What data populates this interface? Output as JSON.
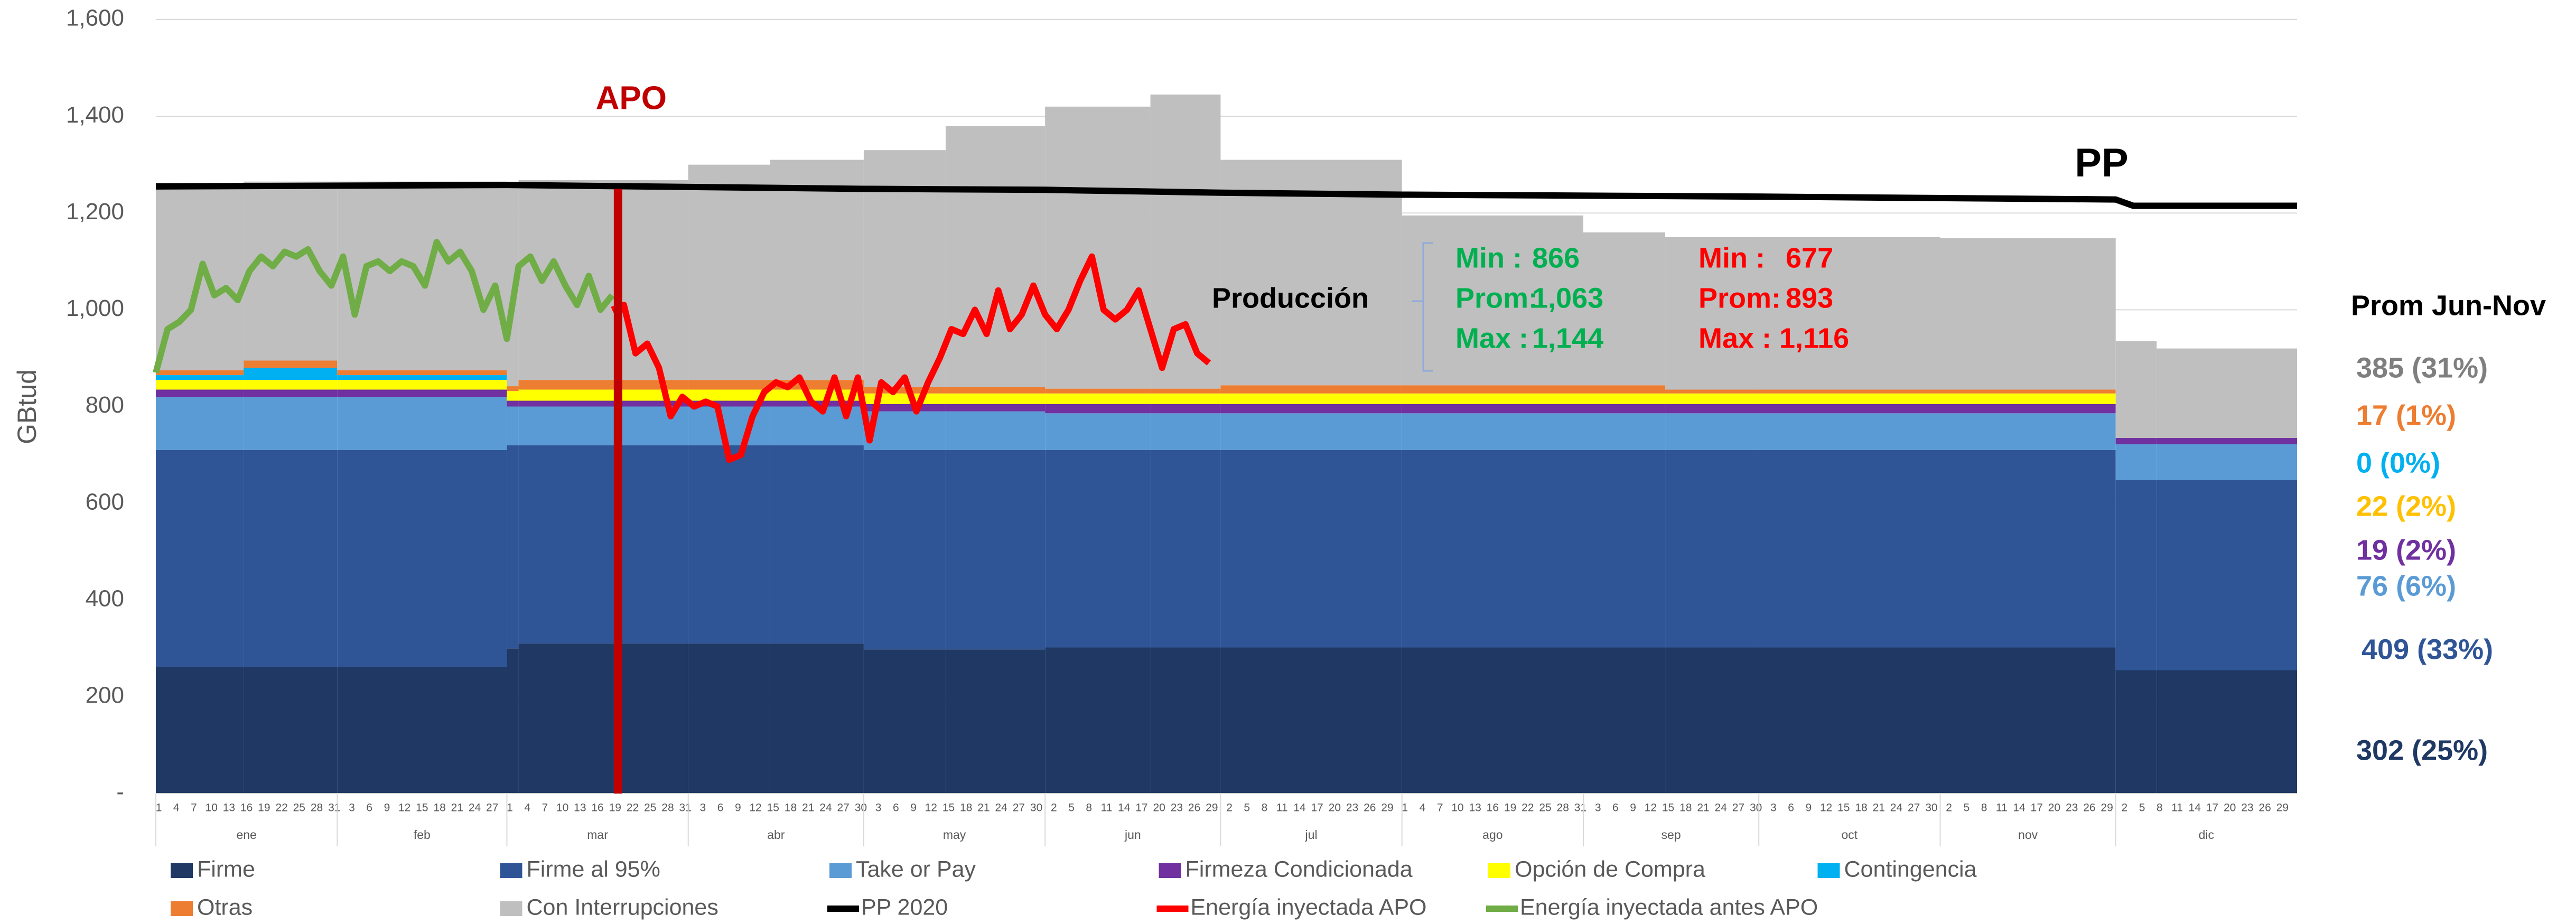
{
  "chart_data": {
    "type": "stacked-step-area",
    "y_label": "GBtud",
    "ylim": [
      0,
      1600
    ],
    "yticks": [
      {
        "value": 0,
        "label": "-"
      },
      200,
      400,
      600,
      800,
      {
        "value": 1000,
        "label": "1,000"
      },
      {
        "value": 1200,
        "label": "1,200"
      },
      {
        "value": 1400,
        "label": "1,400"
      },
      {
        "value": 1600,
        "label": "1,600"
      }
    ],
    "grid": true,
    "xlim": [
      0,
      366
    ],
    "months": [
      {
        "name": "ene",
        "start": 0,
        "days": 31,
        "ticks": [
          1,
          4,
          7,
          10,
          13,
          16,
          19,
          22,
          25,
          28,
          31
        ]
      },
      {
        "name": "feb",
        "start": 31,
        "days": 29,
        "ticks": [
          3,
          6,
          9,
          12,
          15,
          18,
          21,
          24,
          27
        ]
      },
      {
        "name": "mar",
        "start": 60,
        "days": 31,
        "ticks": [
          1,
          4,
          7,
          10,
          13,
          16,
          19,
          22,
          25,
          28,
          31
        ]
      },
      {
        "name": "abr",
        "start": 91,
        "days": 30,
        "ticks": [
          3,
          6,
          9,
          12,
          15,
          18,
          21,
          24,
          27,
          30
        ]
      },
      {
        "name": "may",
        "start": 121,
        "days": 31,
        "ticks": [
          3,
          6,
          9,
          12,
          15,
          18,
          21,
          24,
          27,
          30
        ]
      },
      {
        "name": "jun",
        "start": 152,
        "days": 30,
        "ticks": [
          2,
          5,
          8,
          11,
          14,
          17,
          20,
          23,
          26,
          29
        ]
      },
      {
        "name": "jul",
        "start": 182,
        "days": 31,
        "ticks": [
          2,
          5,
          8,
          11,
          14,
          17,
          20,
          23,
          26,
          29
        ]
      },
      {
        "name": "ago",
        "start": 213,
        "days": 31,
        "ticks": [
          1,
          4,
          7,
          10,
          13,
          16,
          19,
          22,
          25,
          28,
          31
        ]
      },
      {
        "name": "sep",
        "start": 244,
        "days": 30,
        "ticks": [
          3,
          6,
          9,
          12,
          15,
          18,
          21,
          24,
          27,
          30
        ]
      },
      {
        "name": "oct",
        "start": 274,
        "days": 31,
        "ticks": [
          3,
          6,
          9,
          12,
          15,
          18,
          21,
          24,
          27,
          30
        ]
      },
      {
        "name": "nov",
        "start": 305,
        "days": 30,
        "ticks": [
          2,
          5,
          8,
          11,
          14,
          17,
          20,
          23,
          26,
          29
        ]
      },
      {
        "name": "dic",
        "start": 335,
        "days": 31,
        "ticks": [
          2,
          5,
          8,
          11,
          14,
          17,
          20,
          23,
          26,
          29
        ]
      }
    ],
    "x": [
      0,
      15,
      31,
      60,
      62,
      91,
      105,
      121,
      135,
      152,
      170,
      182,
      213,
      244,
      258,
      274,
      305,
      335,
      342
    ],
    "series": [
      {
        "name": "Firme",
        "kind": "area",
        "color": "#1f3864",
        "values": [
          262,
          262,
          262,
          300,
          310,
          310,
          310,
          298,
          298,
          302,
          302,
          302,
          302,
          302,
          302,
          302,
          302,
          255,
          255
        ]
      },
      {
        "name": "Firme al 95%",
        "kind": "area",
        "color": "#2f5597",
        "values": [
          448,
          448,
          448,
          420,
          410,
          410,
          410,
          412,
          412,
          408,
          408,
          408,
          408,
          408,
          408,
          408,
          408,
          393,
          393
        ]
      },
      {
        "name": "Take or Pay",
        "kind": "area",
        "color": "#5b9bd5",
        "values": [
          110,
          110,
          110,
          80,
          80,
          80,
          80,
          80,
          80,
          76,
          76,
          76,
          76,
          76,
          76,
          76,
          76,
          74,
          74
        ]
      },
      {
        "name": "Firmeza Condicionada",
        "kind": "area",
        "color": "#7030a0",
        "values": [
          15,
          15,
          15,
          12,
          12,
          12,
          12,
          15,
          15,
          19,
          19,
          19,
          19,
          19,
          19,
          19,
          19,
          13,
          13
        ]
      },
      {
        "name": "Opción de Compra",
        "kind": "area",
        "color": "#ffff00",
        "values": [
          20,
          20,
          20,
          20,
          23,
          23,
          23,
          22,
          22,
          22,
          22,
          22,
          22,
          22,
          22,
          22,
          22,
          0,
          0
        ]
      },
      {
        "name": "Contingencia",
        "kind": "area",
        "color": "#00b0f0",
        "values": [
          10,
          25,
          10,
          0,
          0,
          0,
          0,
          0,
          0,
          0,
          0,
          0,
          0,
          0,
          0,
          0,
          0,
          0,
          0
        ]
      },
      {
        "name": "Otras",
        "kind": "area",
        "color": "#ed7d31",
        "values": [
          10,
          15,
          10,
          10,
          20,
          20,
          20,
          13,
          13,
          10,
          10,
          17,
          17,
          17,
          8,
          8,
          8,
          0,
          0
        ]
      },
      {
        "name": "Con Interrupciones",
        "kind": "area",
        "color": "#bfbfbf",
        "values": [
          387,
          370,
          390,
          418,
          413,
          445,
          455,
          490,
          540,
          583,
          608,
          466,
          351,
          316,
          315,
          315,
          313,
          200,
          185
        ]
      },
      {
        "name": "PP 2020",
        "kind": "line",
        "color": "#000000",
        "x": [
          0,
          60,
          121,
          152,
          182,
          213,
          274,
          335,
          338,
          366
        ],
        "values": [
          1255,
          1258,
          1250,
          1248,
          1242,
          1238,
          1234,
          1228,
          1215,
          1215
        ]
      },
      {
        "name": "Energía inyectada APO",
        "kind": "line",
        "color": "#ff0000",
        "x": [
          78,
          80,
          82,
          84,
          86,
          88,
          90,
          92,
          94,
          96,
          98,
          100,
          102,
          104,
          106,
          108,
          110,
          112,
          114,
          116,
          118,
          120,
          122,
          124,
          126,
          128,
          130,
          132,
          134,
          136,
          138,
          140,
          142,
          144,
          146,
          148,
          150,
          152,
          154,
          156,
          158,
          160,
          162,
          164,
          166,
          168,
          170,
          172,
          174,
          176,
          178,
          180
        ],
        "values": [
          1000,
          1010,
          910,
          930,
          880,
          780,
          820,
          800,
          810,
          800,
          690,
          700,
          780,
          830,
          850,
          840,
          860,
          810,
          790,
          860,
          780,
          860,
          730,
          850,
          830,
          860,
          790,
          850,
          900,
          960,
          950,
          1000,
          950,
          1040,
          960,
          990,
          1050,
          990,
          960,
          1000,
          1060,
          1110,
          1000,
          980,
          1000,
          1040,
          960,
          880,
          960,
          970,
          910,
          890
        ]
      },
      {
        "name": "Energía inyectada antes APO",
        "kind": "line",
        "color": "#70ad47",
        "x": [
          0,
          2,
          4,
          6,
          8,
          10,
          12,
          14,
          16,
          18,
          20,
          22,
          24,
          26,
          28,
          30,
          32,
          34,
          36,
          38,
          40,
          42,
          44,
          46,
          48,
          50,
          52,
          54,
          56,
          58,
          60,
          62,
          64,
          66,
          68,
          70,
          72,
          74,
          76,
          78
        ],
        "values": [
          870,
          960,
          975,
          1000,
          1095,
          1030,
          1045,
          1020,
          1080,
          1110,
          1090,
          1120,
          1110,
          1125,
          1080,
          1050,
          1110,
          990,
          1090,
          1100,
          1080,
          1100,
          1090,
          1050,
          1140,
          1100,
          1120,
          1080,
          1000,
          1050,
          940,
          1090,
          1110,
          1060,
          1100,
          1050,
          1010,
          1070,
          1000,
          1030
        ]
      }
    ],
    "markers": [
      {
        "label": "APO",
        "x": 79,
        "color": "#c00000"
      }
    ],
    "annotations": {
      "pp": "PP",
      "production": "Producción",
      "stats_before": {
        "color": "#00b050",
        "rows": [
          [
            "Min :",
            "866"
          ],
          [
            "Prom:",
            "1,063"
          ],
          [
            "Max :",
            "1,144"
          ]
        ]
      },
      "stats_after": {
        "color": "#ff0000",
        "rows": [
          [
            "Min :",
            "677"
          ],
          [
            "Prom:",
            "893"
          ],
          [
            "Max : 1,116",
            ""
          ]
        ]
      },
      "summary_title": "Prom Jun-Nov",
      "summary": [
        {
          "text": "385 (31%)",
          "color": "#7f7f7f"
        },
        {
          "text": "17 (1%)",
          "color": "#ed7d31"
        },
        {
          "text": "0 (0%)",
          "color": "#00b0f0"
        },
        {
          "text": "22 (2%)",
          "color": "#ffc000"
        },
        {
          "text": "19 (2%)",
          "color": "#7030a0"
        },
        {
          "text": "76 (6%)",
          "color": "#5b9bd5"
        },
        {
          "text": "409 (33%)",
          "color": "#2f5597"
        },
        {
          "text": "302 (25%)",
          "color": "#1f3864"
        }
      ]
    }
  }
}
